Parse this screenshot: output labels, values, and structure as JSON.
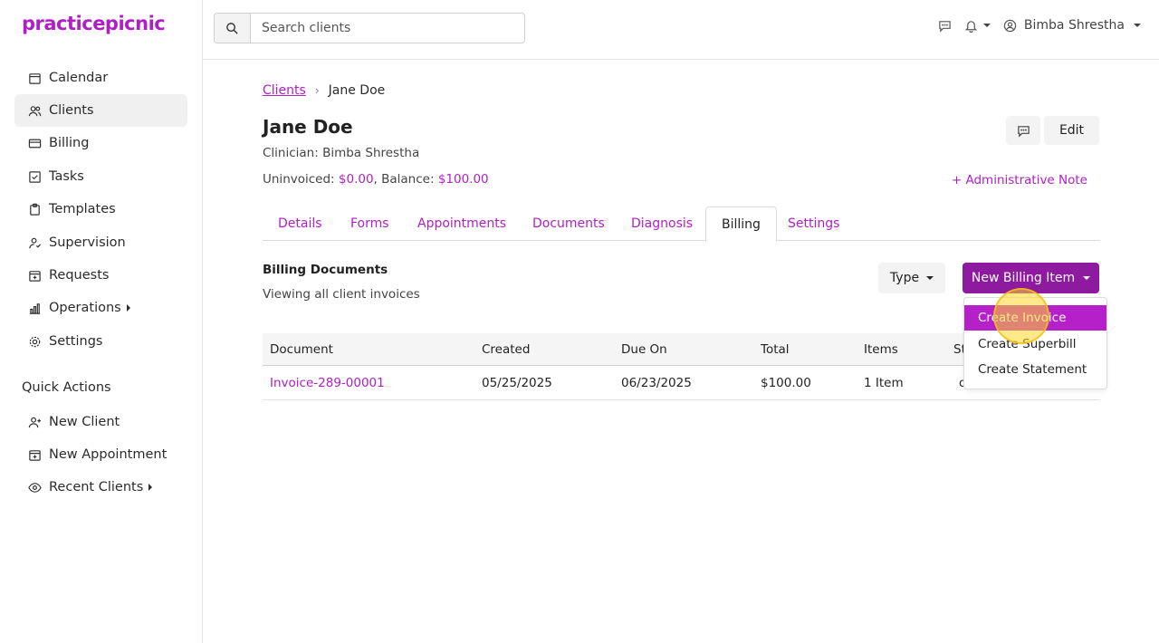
{
  "app": {
    "logo": "practicepicnic"
  },
  "sidebar": {
    "items": [
      {
        "label": "Calendar",
        "icon": "calendar-icon"
      },
      {
        "label": "Clients",
        "icon": "users-icon",
        "active": true
      },
      {
        "label": "Billing",
        "icon": "credit-card-icon"
      },
      {
        "label": "Tasks",
        "icon": "checkbox-icon"
      },
      {
        "label": "Templates",
        "icon": "clipboard-icon"
      },
      {
        "label": "Supervision",
        "icon": "supervisor-icon"
      },
      {
        "label": "Requests",
        "icon": "calendar-plus-icon"
      },
      {
        "label": "Operations",
        "icon": "bar-chart-icon",
        "has_submenu": true
      },
      {
        "label": "Settings",
        "icon": "gear-icon"
      }
    ],
    "quick_actions_title": "Quick Actions",
    "quick_actions": [
      {
        "label": "New Client",
        "icon": "user-plus-icon"
      },
      {
        "label": "New Appointment",
        "icon": "calendar-plus-icon"
      },
      {
        "label": "Recent Clients",
        "icon": "eye-icon",
        "has_submenu": true
      }
    ]
  },
  "header": {
    "search_placeholder": "Search clients",
    "user_name": "Bimba Shrestha"
  },
  "client": {
    "breadcrumb_root": "Clients",
    "breadcrumb_current": "Jane Doe",
    "name": "Jane Doe",
    "clinician": "Clinician: Bimba Shrestha",
    "uninvoiced_label": "Uninvoiced: ",
    "uninvoiced_value": "$0.00",
    "balance_label": ", Balance: ",
    "balance_value": "$100.00",
    "edit_label": "Edit",
    "admin_note_label": "+ Administrative Note"
  },
  "tabs": [
    "Details",
    "Forms",
    "Appointments",
    "Documents",
    "Diagnosis",
    "Billing",
    "Settings"
  ],
  "active_tab": "Billing",
  "billing": {
    "title": "Billing Documents",
    "subtitle": "Viewing all client invoices",
    "type_label": "Type",
    "new_item_label": "New Billing Item",
    "columns": [
      "Document",
      "Created",
      "Due On",
      "Total",
      "Items",
      "St"
    ],
    "rows": [
      {
        "document": "Invoice-289-00001",
        "created": "05/25/2025",
        "due_on": "06/23/2025",
        "total": "$100.00",
        "items": "1 Item",
        "status": "o"
      }
    ],
    "menu": [
      "Create Invoice",
      "Create Superbill",
      "Create Statement"
    ]
  },
  "colors": {
    "brand": "#b01fc5",
    "button_primary": "#8e1a9f",
    "menu_highlight": "#b620c9"
  }
}
